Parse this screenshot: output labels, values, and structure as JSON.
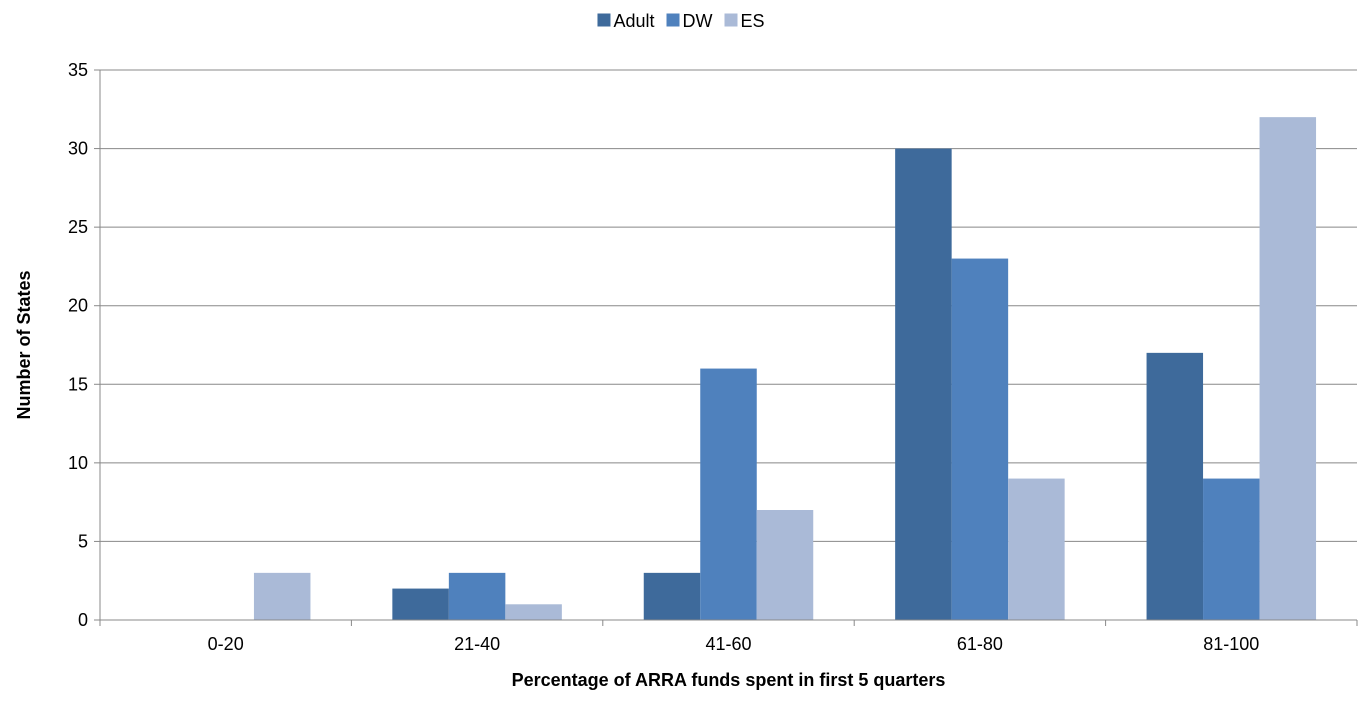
{
  "chart_data": {
    "type": "bar",
    "title": "",
    "xlabel": "Percentage of ARRA funds spent in first 5 quarters",
    "ylabel": "Number of States",
    "categories": [
      "0-20",
      "21-40",
      "41-60",
      "61-80",
      "81-100"
    ],
    "series": [
      {
        "name": "Adult",
        "values": [
          0,
          2,
          3,
          30,
          17
        ],
        "color": "#3E6A9B"
      },
      {
        "name": "DW",
        "values": [
          0,
          3,
          16,
          23,
          9
        ],
        "color": "#4F81BD"
      },
      {
        "name": "ES",
        "values": [
          3,
          1,
          7,
          9,
          32
        ],
        "color": "#AABAD7"
      }
    ],
    "ylim": [
      0,
      35
    ],
    "yticks": [
      0,
      5,
      10,
      15,
      20,
      25,
      30,
      35
    ],
    "grid": true,
    "legend_position": "top-center",
    "gridline_color": "#888888"
  }
}
